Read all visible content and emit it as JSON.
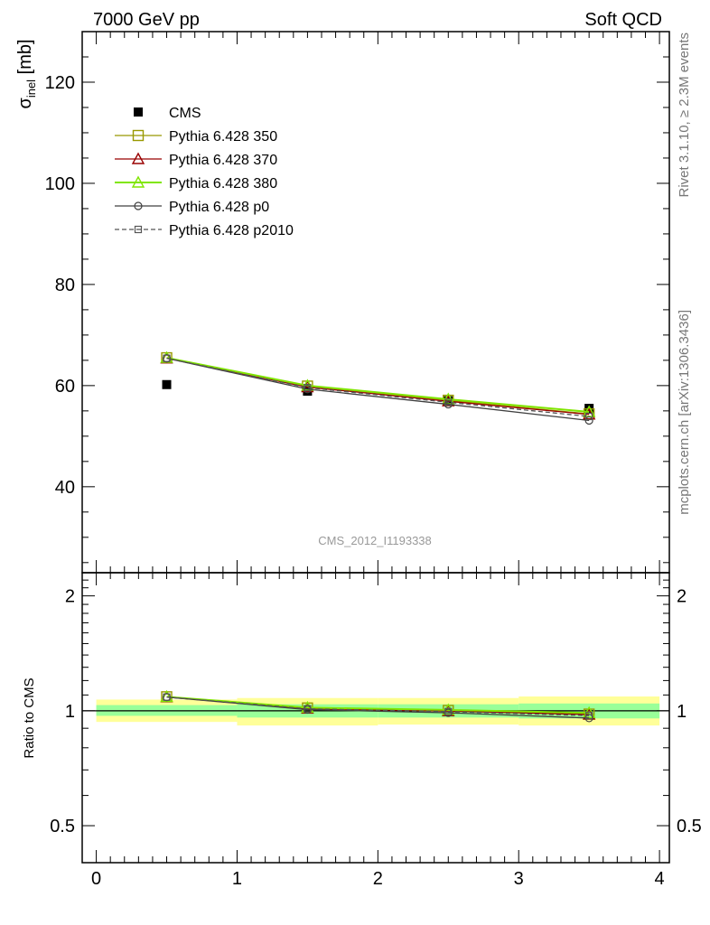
{
  "header": {
    "left_label": "7000 GeV pp",
    "right_label": "Soft QCD"
  },
  "side_labels": {
    "rivet": "Rivet 3.1.10, ≥ 2.3M events",
    "source": "mcplots.cern.ch [arXiv:1306.3436]"
  },
  "analysis_id": "CMS_2012_I1193338",
  "colors": {
    "cms": "#000000",
    "p350": "#999900",
    "p370": "#990000",
    "p380": "#80e600",
    "p0": "#404040",
    "p2010": "#555555",
    "band_yellow": "#ffff99",
    "band_green": "#99ff99"
  },
  "chart_data": [
    {
      "type": "scatter",
      "panel": "main",
      "ylabel_main": "σ",
      "ylabel_sub": "inel",
      "ylabel_unit": " [mb]",
      "ylim": [
        23,
        130
      ],
      "xlim": [
        -0.1,
        4.07
      ],
      "yticks": [
        40,
        60,
        80,
        100,
        120
      ],
      "legend_position": "top-left",
      "series": [
        {
          "name": "CMS",
          "x": [
            0.5,
            1.5,
            2.5,
            3.5
          ],
          "values": [
            60.2,
            58.9,
            57.0,
            55.5
          ],
          "marker": "filled-square"
        },
        {
          "name": "Pythia 6.428 350",
          "x": [
            0.5,
            1.5,
            2.5,
            3.5
          ],
          "values": [
            65.5,
            59.9,
            57.1,
            54.4
          ],
          "marker": "open-square",
          "line": "solid"
        },
        {
          "name": "Pythia 6.428 370",
          "x": [
            0.5,
            1.5,
            2.5,
            3.5
          ],
          "values": [
            65.4,
            59.7,
            56.9,
            54.3
          ],
          "marker": "open-triangle",
          "line": "solid"
        },
        {
          "name": "Pythia 6.428 380",
          "x": [
            0.5,
            1.5,
            2.5,
            3.5
          ],
          "values": [
            65.5,
            60.0,
            57.3,
            54.8
          ],
          "marker": "open-triangle",
          "line": "solid"
        },
        {
          "name": "Pythia 6.428 p0",
          "x": [
            0.5,
            1.5,
            2.5,
            3.5
          ],
          "values": [
            65.4,
            59.3,
            56.3,
            53.1
          ],
          "marker": "open-circle",
          "line": "solid"
        },
        {
          "name": "Pythia 6.428 p2010",
          "x": [
            0.5,
            1.5,
            2.5,
            3.5
          ],
          "values": [
            65.4,
            59.6,
            56.7,
            53.9
          ],
          "marker": "open-small-square",
          "line": "dashed"
        }
      ]
    },
    {
      "type": "line",
      "panel": "ratio",
      "ylabel": "Ratio to CMS",
      "ylim": [
        0.4,
        2.3
      ],
      "xlim": [
        -0.1,
        4.07
      ],
      "xticks": [
        0,
        1,
        2,
        3,
        4
      ],
      "yticks": [
        0.5,
        1,
        2
      ],
      "bands": {
        "x_edges": [
          0,
          1,
          2,
          3,
          4
        ],
        "total_lo": [
          0.935,
          0.915,
          0.92,
          0.915
        ],
        "total_hi": [
          1.07,
          1.08,
          1.08,
          1.09
        ],
        "stat_lo": [
          0.97,
          0.96,
          0.96,
          0.955
        ],
        "stat_hi": [
          1.035,
          1.04,
          1.04,
          1.045
        ]
      },
      "series": [
        {
          "name": "Pythia 6.428 350",
          "x": [
            0.5,
            1.5,
            2.5,
            3.5
          ],
          "values": [
            1.088,
            1.017,
            1.002,
            0.98
          ]
        },
        {
          "name": "Pythia 6.428 370",
          "x": [
            0.5,
            1.5,
            2.5,
            3.5
          ],
          "values": [
            1.086,
            1.014,
            0.998,
            0.978
          ]
        },
        {
          "name": "Pythia 6.428 380",
          "x": [
            0.5,
            1.5,
            2.5,
            3.5
          ],
          "values": [
            1.088,
            1.019,
            1.005,
            0.987
          ]
        },
        {
          "name": "Pythia 6.428 p0",
          "x": [
            0.5,
            1.5,
            2.5,
            3.5
          ],
          "values": [
            1.086,
            1.007,
            0.988,
            0.957
          ]
        },
        {
          "name": "Pythia 6.428 p2010",
          "x": [
            0.5,
            1.5,
            2.5,
            3.5
          ],
          "values": [
            1.086,
            1.012,
            0.995,
            0.971
          ]
        }
      ]
    }
  ]
}
